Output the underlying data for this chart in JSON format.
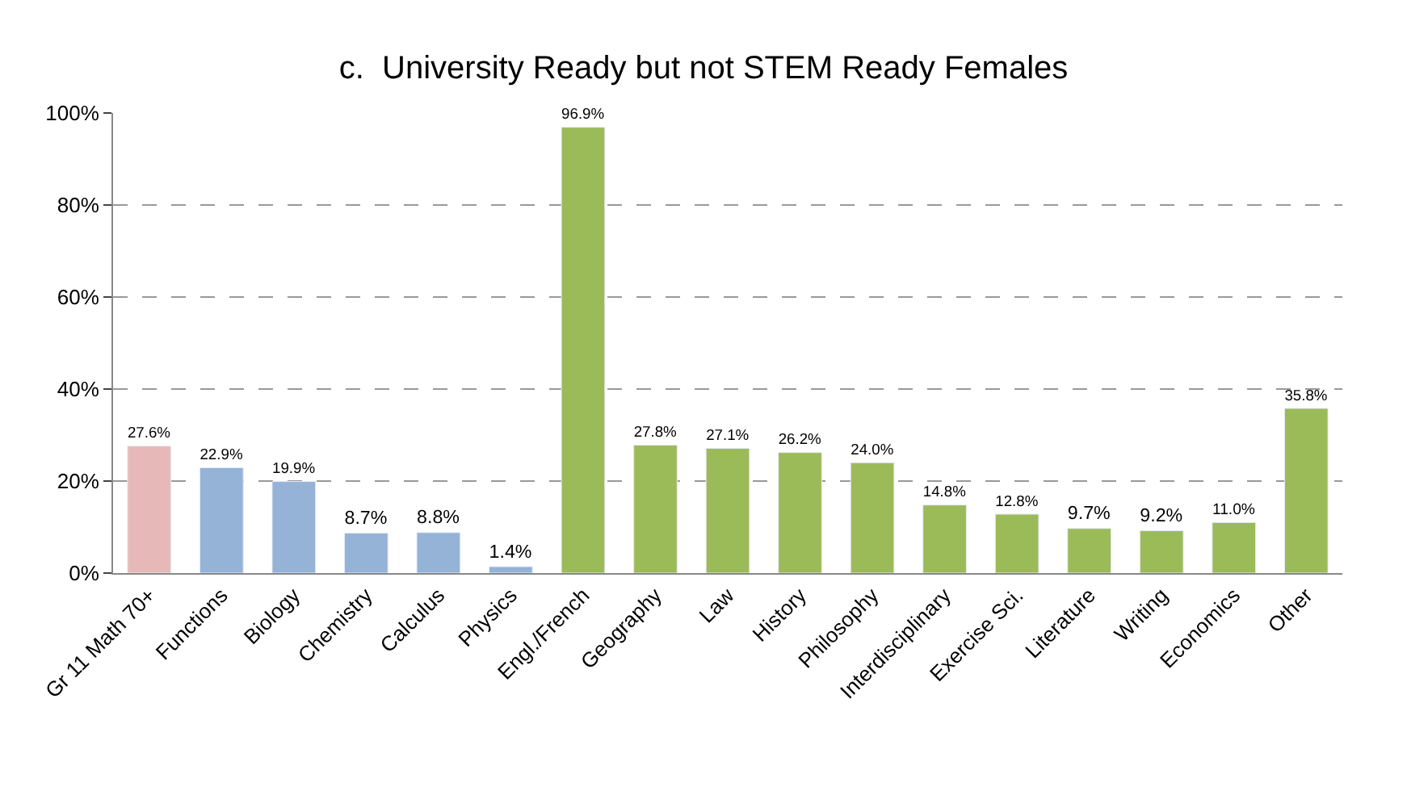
{
  "chart_data": {
    "type": "bar",
    "title": "c.  University Ready but not STEM Ready Females",
    "categories": [
      "Gr 11 Math 70+",
      "Functions",
      "Biology",
      "Chemistry",
      "Calculus",
      "Physics",
      "Engl./French",
      "Geography",
      "Law",
      "History",
      "Philosophy",
      "Interdisciplinary",
      "Exercise Sci.",
      "Literature",
      "Writing",
      "Economics",
      "Other"
    ],
    "values": [
      27.6,
      22.9,
      19.9,
      8.7,
      8.8,
      1.4,
      96.9,
      27.8,
      27.1,
      26.2,
      24.0,
      14.8,
      12.8,
      9.7,
      9.2,
      11.0,
      35.8
    ],
    "value_labels": [
      "27.6%",
      "22.9%",
      "19.9%",
      "8.7%",
      "8.8%",
      "1.4%",
      "96.9%",
      "27.8%",
      "27.1%",
      "26.2%",
      "24.0%",
      "14.8%",
      "12.8%",
      "9.7%",
      "9.2%",
      "11.0%",
      "35.8%"
    ],
    "colors": [
      "#e6b9b8",
      "#95b3d7",
      "#95b3d7",
      "#95b3d7",
      "#95b3d7",
      "#95b3d7",
      "#9bbb59",
      "#9bbb59",
      "#9bbb59",
      "#9bbb59",
      "#9bbb59",
      "#9bbb59",
      "#9bbb59",
      "#9bbb59",
      "#9bbb59",
      "#9bbb59",
      "#9bbb59"
    ],
    "ylim": [
      0,
      100
    ],
    "yticks": [
      {
        "value": 0,
        "label": "0%"
      },
      {
        "value": 20,
        "label": "20%"
      },
      {
        "value": 40,
        "label": "40%"
      },
      {
        "value": 60,
        "label": "60%"
      },
      {
        "value": 80,
        "label": "80%"
      },
      {
        "value": 100,
        "label": "100%"
      }
    ],
    "grid": "y",
    "legend": false
  }
}
